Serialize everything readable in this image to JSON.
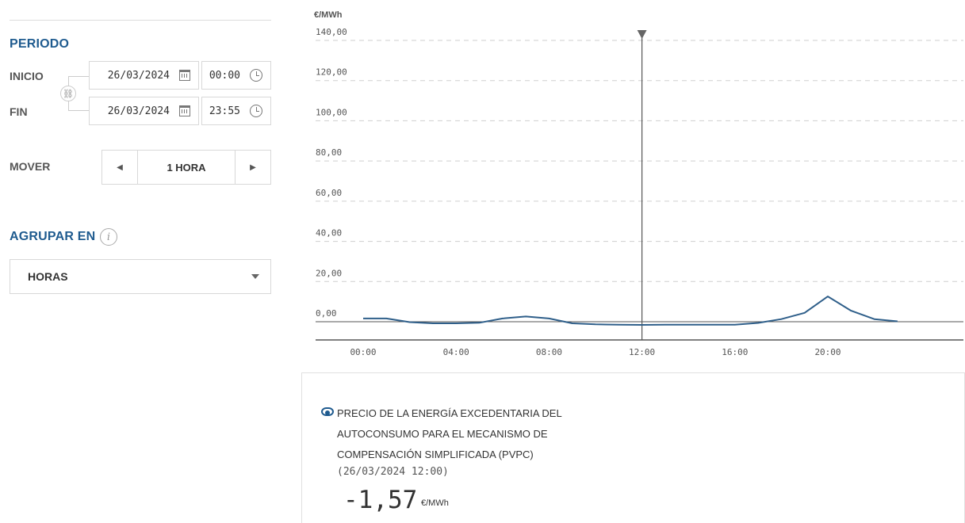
{
  "periodo": {
    "title": "PERIODO",
    "inicio": {
      "label": "INICIO",
      "date": "26/03/2024",
      "time": "00:00"
    },
    "fin": {
      "label": "FIN",
      "date": "26/03/2024",
      "time": "23:55"
    }
  },
  "mover": {
    "label": "MOVER",
    "value": "1 HORA"
  },
  "agrupar": {
    "title": "AGRUPAR EN",
    "selected": "HORAS"
  },
  "chart_data": {
    "type": "line",
    "ylabel": "€/MWh",
    "xlabel": "",
    "title": "",
    "ylim": [
      0,
      140
    ],
    "yticks": [
      "0,00",
      "20,00",
      "40,00",
      "60,00",
      "80,00",
      "100,00",
      "120,00",
      "140,00"
    ],
    "xticks": [
      "00:00",
      "04:00",
      "08:00",
      "12:00",
      "16:00",
      "20:00"
    ],
    "x": [
      0,
      1,
      2,
      3,
      4,
      5,
      6,
      7,
      8,
      9,
      10,
      11,
      12,
      13,
      14,
      15,
      16,
      17,
      18,
      19,
      20,
      21,
      22,
      23
    ],
    "series": [
      {
        "values": [
          1.6,
          1.6,
          -0.2,
          -0.8,
          -0.8,
          -0.5,
          1.6,
          2.6,
          1.6,
          -0.8,
          -1.3,
          -1.5,
          -1.57,
          -1.5,
          -1.5,
          -1.5,
          -1.5,
          -0.6,
          1.3,
          4.4,
          12.6,
          5.5,
          1.3,
          0.2
        ]
      }
    ],
    "cursor_hour": 12,
    "grid": true,
    "line_color": "#2f5f8a"
  },
  "info": {
    "title": "PRECIO DE LA ENERGÍA EXCEDENTARIA DEL AUTOCONSUMO PARA EL MECANISMO DE COMPENSACIÓN SIMPLIFICADA (PVPC)",
    "date": "(26/03/2024 12:00)",
    "value": "-1,57",
    "unit": "€/MWh"
  },
  "colors": {
    "accent": "#1f5b8f",
    "line": "#2f5f8a"
  }
}
